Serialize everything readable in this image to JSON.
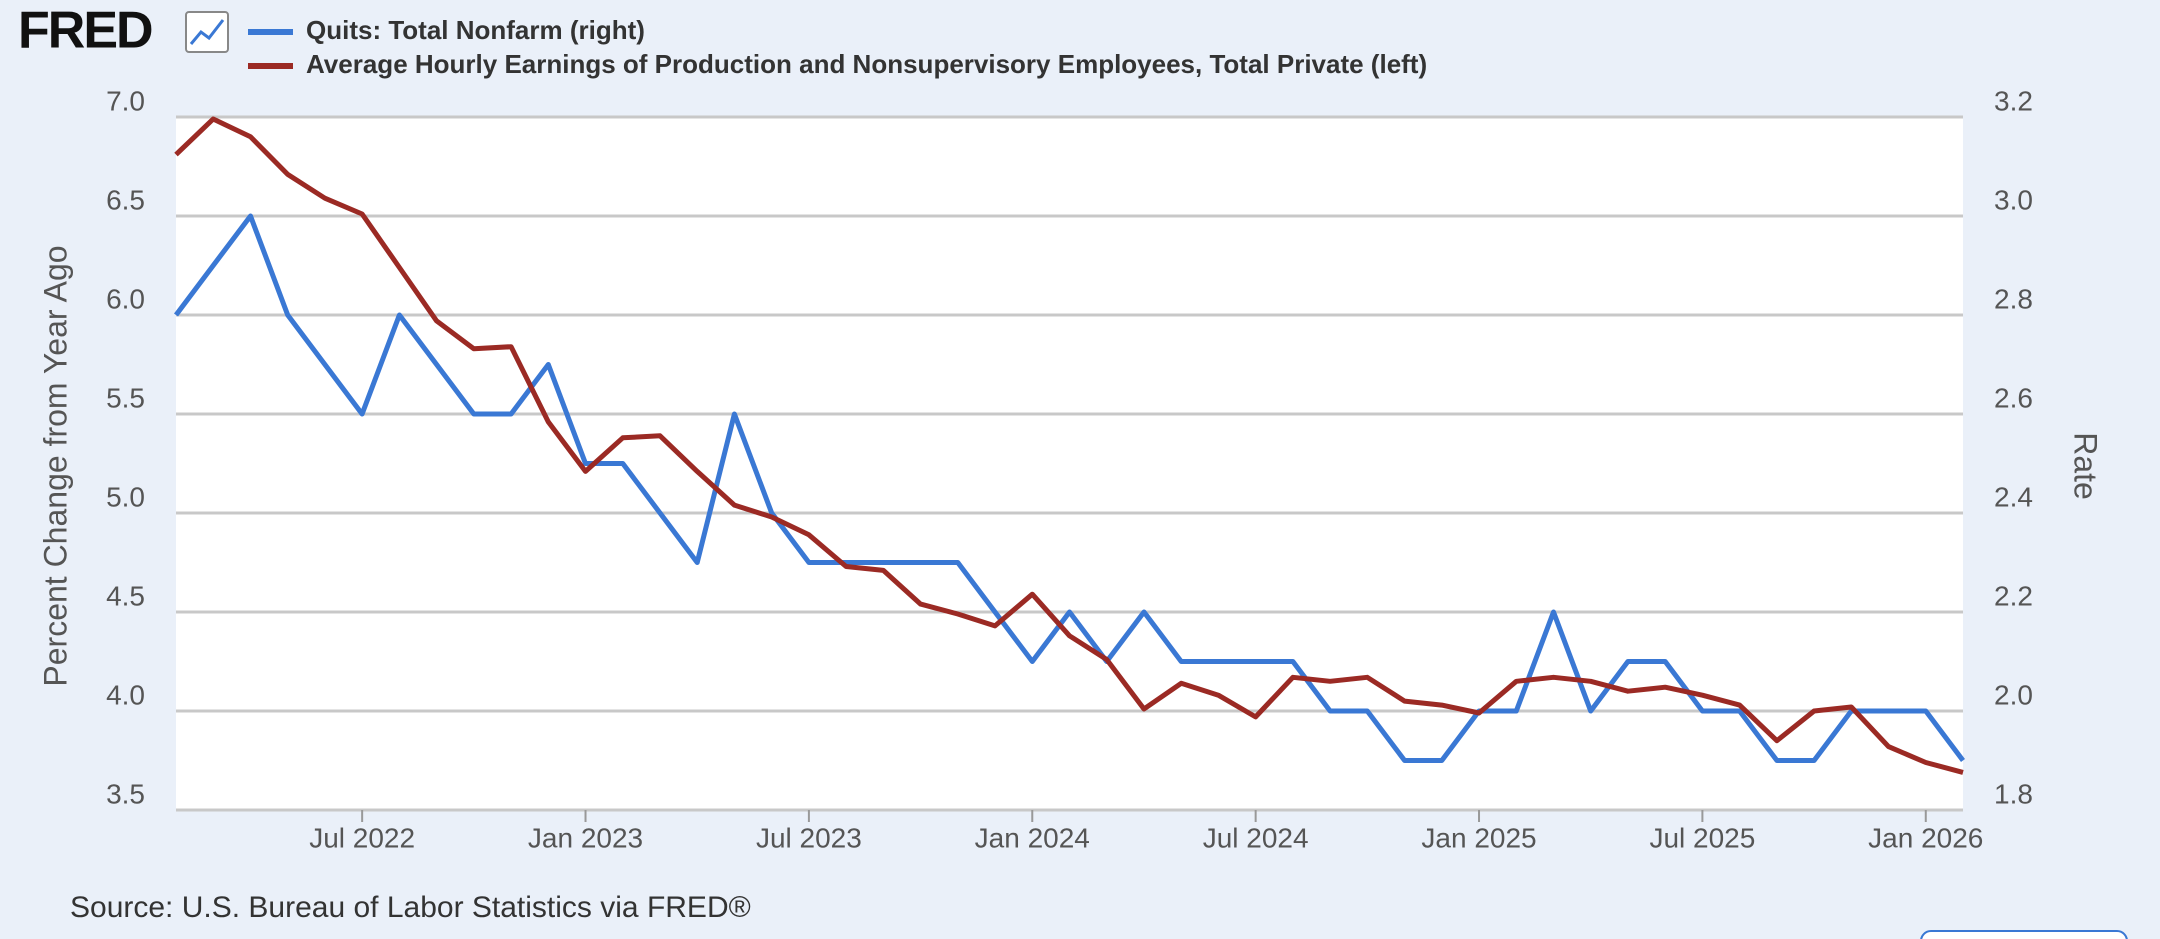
{
  "logo": "FRED",
  "source": "Source: U.S. Bureau of Labor Statistics via FRED®",
  "chart_data": {
    "type": "line",
    "y_label": "Percent Change from Year Ago",
    "y2_label": "Rate",
    "x": [
      "2022-02",
      "2022-03",
      "2022-04",
      "2022-05",
      "2022-06",
      "2022-07",
      "2022-08",
      "2022-09",
      "2022-10",
      "2022-11",
      "2022-12",
      "2023-01",
      "2023-02",
      "2023-03",
      "2023-04",
      "2023-05",
      "2023-06",
      "2023-07",
      "2023-08",
      "2023-09",
      "2023-10",
      "2023-11",
      "2023-12",
      "2024-01",
      "2024-02",
      "2024-03",
      "2024-04",
      "2024-05",
      "2024-06",
      "2024-07",
      "2024-08",
      "2024-09",
      "2024-10",
      "2024-11",
      "2024-12",
      "2025-01",
      "2025-02",
      "2025-03",
      "2025-04",
      "2025-05",
      "2025-06",
      "2025-07",
      "2025-08",
      "2025-09",
      "2025-10",
      "2025-11",
      "2025-12",
      "2026-01",
      "2026-02"
    ],
    "xlim": [
      "2022-02",
      "2026-02"
    ],
    "xticks": [
      {
        "value": "2022-07",
        "label": "Jul 2022"
      },
      {
        "value": "2023-01",
        "label": "Jan 2023"
      },
      {
        "value": "2023-07",
        "label": "Jul 2023"
      },
      {
        "value": "2024-01",
        "label": "Jan 2024"
      },
      {
        "value": "2024-07",
        "label": "Jul 2024"
      },
      {
        "value": "2025-01",
        "label": "Jan 2025"
      },
      {
        "value": "2025-07",
        "label": "Jul 2025"
      },
      {
        "value": "2026-01",
        "label": "Jan 2026"
      }
    ],
    "ylim": [
      3.5,
      7.0
    ],
    "yticks": [
      3.5,
      {
        "value": 4,
        "label": "4.0"
      },
      4.5,
      {
        "value": 5,
        "label": "5.0"
      },
      5.5,
      {
        "value": 6,
        "label": "6.0"
      },
      6.5,
      {
        "value": 7,
        "label": "7.0"
      }
    ],
    "y2lim": [
      1.8,
      3.2
    ],
    "y2ticks": [
      1.8,
      {
        "value": 2,
        "label": "2.0"
      },
      2.2,
      2.4,
      2.6,
      2.8,
      {
        "value": 3,
        "label": "3.0"
      },
      3.2
    ],
    "grid": true,
    "series": [
      {
        "name": "Quits: Total Nonfarm (right)",
        "color": "#3a78d4",
        "axis": "y2",
        "values": [
          2.8,
          2.9,
          3.0,
          2.8,
          2.7,
          2.6,
          2.8,
          2.7,
          2.6,
          2.6,
          2.7,
          2.5,
          2.5,
          2.4,
          2.3,
          2.6,
          2.4,
          2.3,
          2.3,
          2.3,
          2.3,
          2.3,
          2.2,
          2.1,
          2.2,
          2.1,
          2.2,
          2.1,
          2.1,
          2.1,
          2.1,
          2.0,
          2.0,
          1.9,
          1.9,
          2.0,
          2.0,
          2.2,
          2.0,
          2.1,
          2.1,
          2.0,
          2.0,
          1.9,
          1.9,
          2.0,
          2.0,
          2.0,
          1.9
        ]
      },
      {
        "name": "Average Hourly Earnings of Production and Nonsupervisory Employees, Total Private (left)",
        "color": "#9b2a24",
        "axis": "y",
        "values": [
          6.81,
          6.99,
          6.9,
          6.71,
          6.59,
          6.51,
          6.24,
          5.97,
          5.83,
          5.84,
          5.46,
          5.21,
          5.38,
          5.39,
          5.21,
          5.04,
          4.98,
          4.89,
          4.73,
          4.71,
          4.54,
          4.49,
          4.43,
          4.59,
          4.38,
          4.26,
          4.01,
          4.14,
          4.08,
          3.97,
          4.17,
          4.15,
          4.17,
          4.05,
          4.03,
          3.99,
          4.15,
          4.17,
          4.15,
          4.1,
          4.12,
          4.08,
          4.03,
          3.85,
          4.0,
          4.02,
          3.82,
          3.74,
          3.69
        ]
      }
    ]
  }
}
